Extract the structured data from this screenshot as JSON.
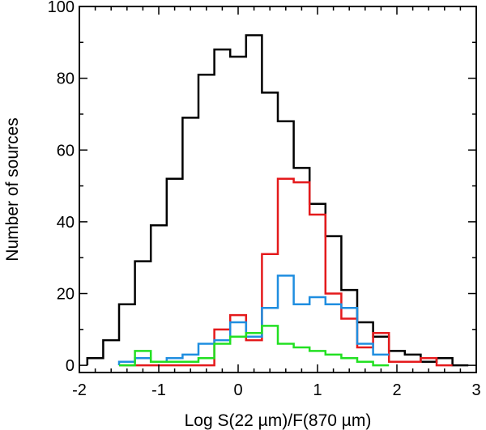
{
  "chart_data": {
    "type": "step-histogram",
    "xlabel": "Log S(22 µm)/F(870 µm)",
    "ylabel": "Number of sources",
    "xlim": [
      -2,
      3
    ],
    "ylim": [
      -2,
      100
    ],
    "xticks": [
      -2,
      -1,
      0,
      1,
      2,
      3
    ],
    "xtick_labels": [
      "-2",
      "-1",
      "0",
      "1",
      "2",
      "3"
    ],
    "yticks": [
      0,
      20,
      40,
      60,
      80,
      100
    ],
    "ytick_labels": [
      "0",
      "20",
      "40",
      "60",
      "80",
      "100"
    ],
    "grid": false,
    "legend": "none",
    "series": [
      {
        "color": "#000000",
        "bin_edges": [
          -1.9,
          -1.7,
          -1.5,
          -1.3,
          -1.1,
          -0.9,
          -0.7,
          -0.5,
          -0.3,
          -0.1,
          0.1,
          0.3,
          0.5,
          0.7,
          0.9,
          1.1,
          1.3,
          1.5,
          1.7,
          1.9,
          2.1,
          2.3,
          2.5,
          2.7,
          2.9
        ],
        "counts": [
          2,
          7,
          17,
          29,
          39,
          52,
          69,
          81,
          88,
          86,
          92,
          76,
          68,
          55,
          45,
          36,
          21,
          12,
          8,
          4,
          3,
          1,
          2,
          0
        ]
      },
      {
        "color": "#e41a1c",
        "bin_edges": [
          -1.5,
          -1.3,
          -1.1,
          -0.9,
          -0.7,
          -0.5,
          -0.3,
          -0.1,
          0.1,
          0.3,
          0.5,
          0.7,
          0.9,
          1.1,
          1.3,
          1.5,
          1.7,
          1.9,
          2.1,
          2.3,
          2.5,
          2.7
        ],
        "counts": [
          0,
          0,
          0,
          0,
          0,
          0,
          10,
          14,
          7,
          31,
          52,
          51,
          42,
          20,
          13,
          5,
          9,
          1,
          1,
          2,
          0
        ]
      },
      {
        "color": "#1f8ee0",
        "bin_edges": [
          -1.5,
          -1.3,
          -1.1,
          -0.9,
          -0.7,
          -0.5,
          -0.3,
          -0.1,
          0.1,
          0.3,
          0.5,
          0.7,
          0.9,
          1.1,
          1.3,
          1.5,
          1.7,
          1.9
        ],
        "counts": [
          1,
          2,
          1,
          2,
          3,
          6,
          7,
          12,
          8,
          16,
          25,
          17,
          19,
          17,
          16,
          6,
          3
        ]
      },
      {
        "color": "#22e022",
        "bin_edges": [
          -1.5,
          -1.3,
          -1.1,
          -0.9,
          -0.7,
          -0.5,
          -0.3,
          -0.1,
          0.1,
          0.3,
          0.5,
          0.7,
          0.9,
          1.1,
          1.3,
          1.5,
          1.7,
          1.9
        ],
        "counts": [
          0,
          4,
          1,
          1,
          1,
          2,
          6,
          8,
          9,
          11,
          6,
          5,
          4,
          3,
          2,
          1,
          0
        ]
      }
    ]
  }
}
